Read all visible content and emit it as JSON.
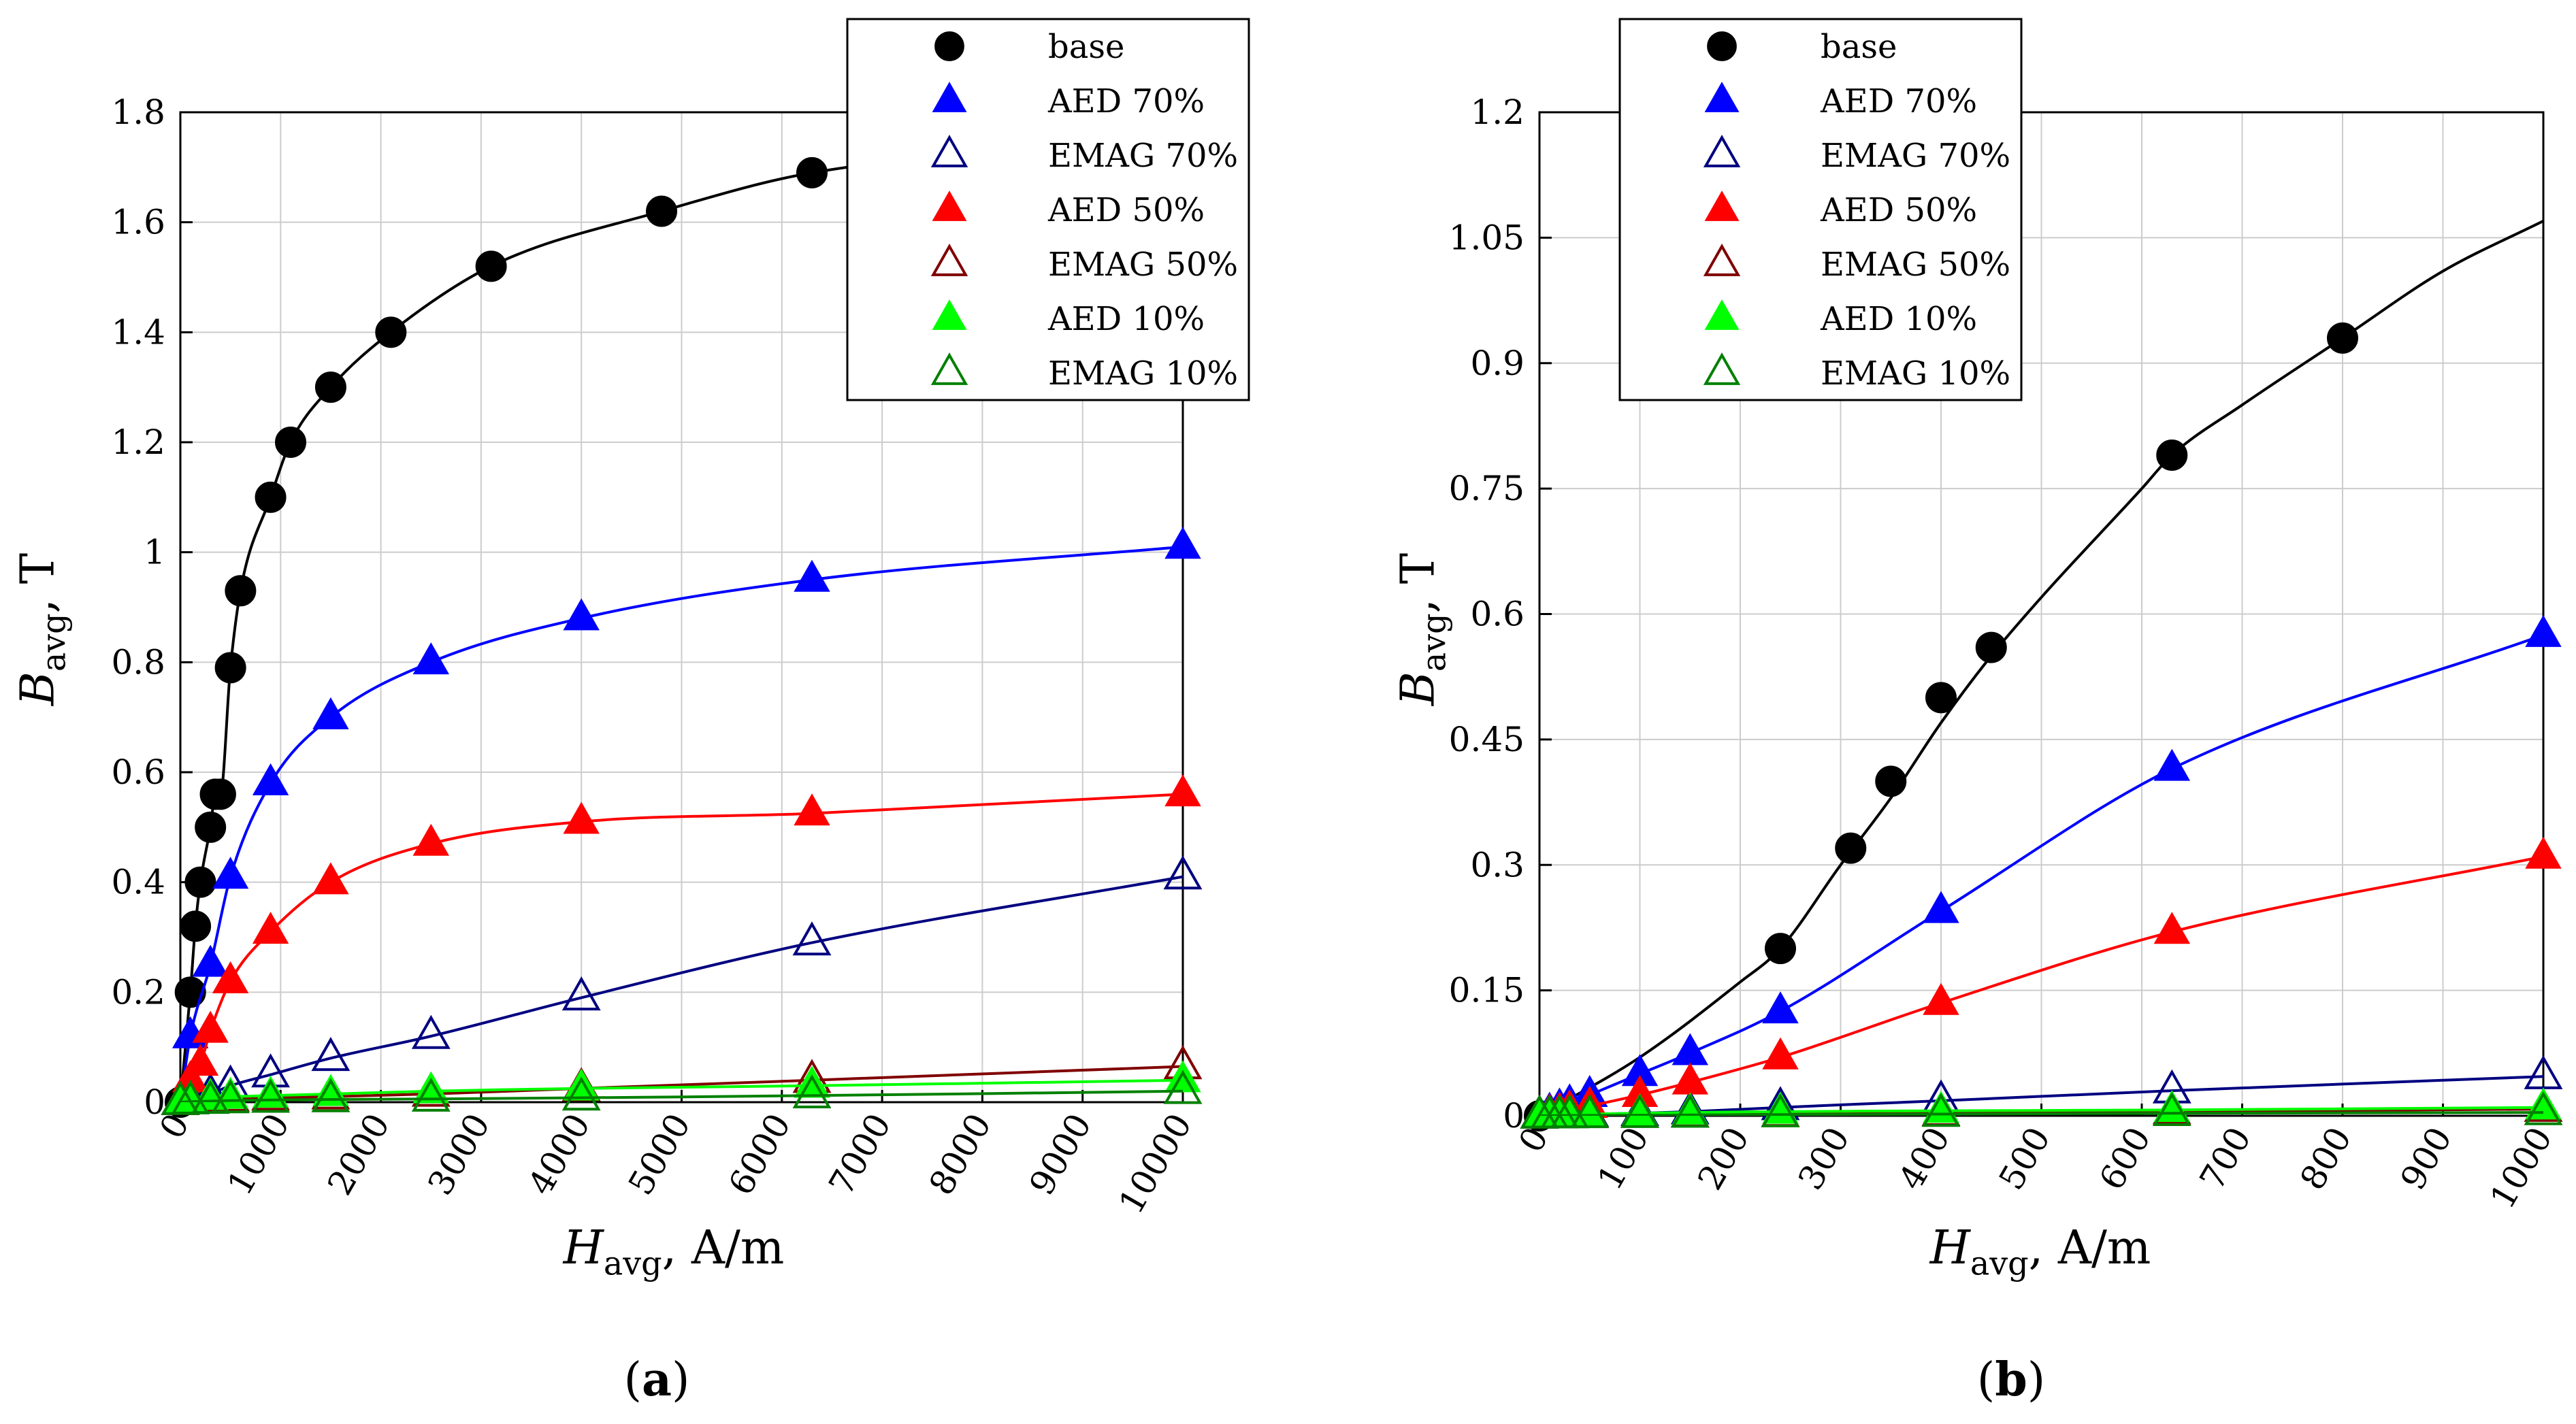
{
  "chart_data": [
    {
      "type": "scatter",
      "panel_label": "(a)",
      "xlabel": {
        "symbol": "H",
        "sub": "avg",
        "rest": ", A/m"
      },
      "ylabel": {
        "symbol": "B",
        "sub": "avg",
        "rest": ", T"
      },
      "xlim": [
        0,
        10000
      ],
      "ylim": [
        0,
        1.8
      ],
      "xticks": [
        0,
        1000,
        2000,
        3000,
        4000,
        5000,
        6000,
        7000,
        8000,
        9000,
        10000
      ],
      "yticks": [
        0,
        0.2,
        0.4,
        0.6,
        0.8,
        1,
        1.2,
        1.4,
        1.6,
        1.8
      ],
      "grid": true,
      "legend_position": "top-right",
      "series": [
        {
          "name": "base",
          "color": "#000000",
          "marker": "circle-filled",
          "x": [
            0,
            100,
            150,
            200,
            300,
            350,
            400,
            500,
            600,
            900,
            1100,
            1500,
            2100,
            3100,
            4800,
            6300,
            10000
          ],
          "y": [
            0,
            0.2,
            0.32,
            0.4,
            0.5,
            0.56,
            0.56,
            0.79,
            0.93,
            1.1,
            1.2,
            1.3,
            1.4,
            1.52,
            1.62,
            1.69,
            1.75
          ]
        },
        {
          "name": "AED 70%",
          "color": "#0000ff",
          "marker": "triangle-filled",
          "x": [
            0,
            100,
            300,
            500,
            900,
            1500,
            2500,
            4000,
            6300,
            10000
          ],
          "y": [
            0,
            0.12,
            0.25,
            0.41,
            0.58,
            0.7,
            0.8,
            0.88,
            0.95,
            1.01
          ]
        },
        {
          "name": "EMAG 70%",
          "color": "#000080",
          "marker": "triangle-open",
          "x": [
            0,
            100,
            300,
            500,
            900,
            1500,
            2500,
            4000,
            6300,
            10000
          ],
          "y": [
            0,
            0.005,
            0.015,
            0.03,
            0.05,
            0.08,
            0.12,
            0.19,
            0.29,
            0.41
          ]
        },
        {
          "name": "AED 50%",
          "color": "#ff0000",
          "marker": "triangle-filled",
          "x": [
            0,
            100,
            200,
            300,
            500,
            900,
            1500,
            2500,
            4000,
            6300,
            10000
          ],
          "y": [
            0,
            0.04,
            0.07,
            0.13,
            0.22,
            0.31,
            0.4,
            0.47,
            0.51,
            0.525,
            0.56
          ]
        },
        {
          "name": "EMAG 50%",
          "color": "#800000",
          "marker": "triangle-open",
          "x": [
            0,
            100,
            300,
            500,
            900,
            1500,
            2500,
            4000,
            6300,
            10000
          ],
          "y": [
            0,
            0.002,
            0.005,
            0.006,
            0.008,
            0.01,
            0.015,
            0.025,
            0.04,
            0.065
          ]
        },
        {
          "name": "AED 10%",
          "color": "#00ff00",
          "marker": "triangle-filled",
          "x": [
            0,
            100,
            300,
            500,
            900,
            1500,
            2500,
            4000,
            6300,
            10000
          ],
          "y": [
            0,
            0.004,
            0.008,
            0.01,
            0.012,
            0.015,
            0.02,
            0.025,
            0.03,
            0.04
          ]
        },
        {
          "name": "EMAG 10%",
          "color": "#008000",
          "marker": "triangle-open",
          "x": [
            0,
            100,
            300,
            500,
            900,
            1500,
            2500,
            4000,
            6300,
            10000
          ],
          "y": [
            0,
            0.001,
            0.002,
            0.003,
            0.004,
            0.005,
            0.006,
            0.008,
            0.012,
            0.02
          ]
        }
      ]
    },
    {
      "type": "scatter",
      "panel_label": "(b)",
      "xlabel": {
        "symbol": "H",
        "sub": "avg",
        "rest": ", A/m"
      },
      "ylabel": {
        "symbol": "B",
        "sub": "avg",
        "rest": ", T"
      },
      "xlim": [
        0,
        1000
      ],
      "ylim": [
        0,
        1.2
      ],
      "xticks": [
        0,
        100,
        200,
        300,
        400,
        500,
        600,
        700,
        800,
        900,
        1000
      ],
      "yticks": [
        0,
        0.15,
        0.3,
        0.45,
        0.6,
        0.75,
        0.9,
        1.05,
        1.2
      ],
      "grid": true,
      "legend_position": "top-left",
      "series": [
        {
          "name": "base",
          "color": "#000000",
          "marker": "circle-filled",
          "x": [
            0,
            240,
            310,
            350,
            400,
            450,
            630,
            800
          ],
          "y": [
            0,
            0.2,
            0.32,
            0.4,
            0.5,
            0.56,
            0.79,
            0.93
          ],
          "curve_x": [
            0,
            100,
            200,
            240,
            300,
            350,
            400,
            450,
            500,
            600,
            630,
            700,
            800,
            900,
            1000
          ],
          "curve_y": [
            0,
            0.07,
            0.16,
            0.2,
            0.3,
            0.38,
            0.47,
            0.55,
            0.62,
            0.75,
            0.79,
            0.85,
            0.93,
            1.01,
            1.07
          ]
        },
        {
          "name": "AED 70%",
          "color": "#0000ff",
          "marker": "triangle-filled",
          "x": [
            0,
            10,
            20,
            30,
            50,
            100,
            150,
            240,
            400,
            630,
            1000
          ],
          "y": [
            0,
            0.005,
            0.01,
            0.015,
            0.025,
            0.05,
            0.075,
            0.125,
            0.245,
            0.415,
            0.575
          ]
        },
        {
          "name": "EMAG 70%",
          "color": "#000080",
          "marker": "triangle-open",
          "x": [
            0,
            10,
            20,
            30,
            50,
            100,
            150,
            240,
            400,
            630,
            1000
          ],
          "y": [
            0,
            0.0005,
            0.001,
            0.0015,
            0.002,
            0.003,
            0.005,
            0.01,
            0.018,
            0.03,
            0.047
          ]
        },
        {
          "name": "AED 50%",
          "color": "#ff0000",
          "marker": "triangle-filled",
          "x": [
            0,
            10,
            20,
            30,
            50,
            100,
            150,
            240,
            400,
            630,
            1000
          ],
          "y": [
            0,
            0.003,
            0.005,
            0.008,
            0.012,
            0.025,
            0.04,
            0.07,
            0.135,
            0.22,
            0.31
          ]
        },
        {
          "name": "EMAG 50%",
          "color": "#800000",
          "marker": "triangle-open",
          "x": [
            0,
            10,
            20,
            30,
            50,
            100,
            150,
            240,
            400,
            630,
            1000
          ],
          "y": [
            0,
            0.0002,
            0.0003,
            0.0005,
            0.0008,
            0.001,
            0.0015,
            0.002,
            0.003,
            0.005,
            0.008
          ]
        },
        {
          "name": "AED 10%",
          "color": "#00ff00",
          "marker": "triangle-filled",
          "x": [
            0,
            10,
            20,
            30,
            50,
            100,
            150,
            240,
            400,
            630,
            1000
          ],
          "y": [
            0,
            0.0005,
            0.001,
            0.0015,
            0.002,
            0.003,
            0.004,
            0.005,
            0.006,
            0.007,
            0.01
          ]
        },
        {
          "name": "EMAG 10%",
          "color": "#008000",
          "marker": "triangle-open",
          "x": [
            0,
            10,
            20,
            30,
            50,
            100,
            150,
            240,
            400,
            630,
            1000
          ],
          "y": [
            0,
            0.0002,
            0.0003,
            0.0004,
            0.0005,
            0.0007,
            0.001,
            0.0015,
            0.002,
            0.003,
            0.004
          ]
        }
      ]
    }
  ]
}
